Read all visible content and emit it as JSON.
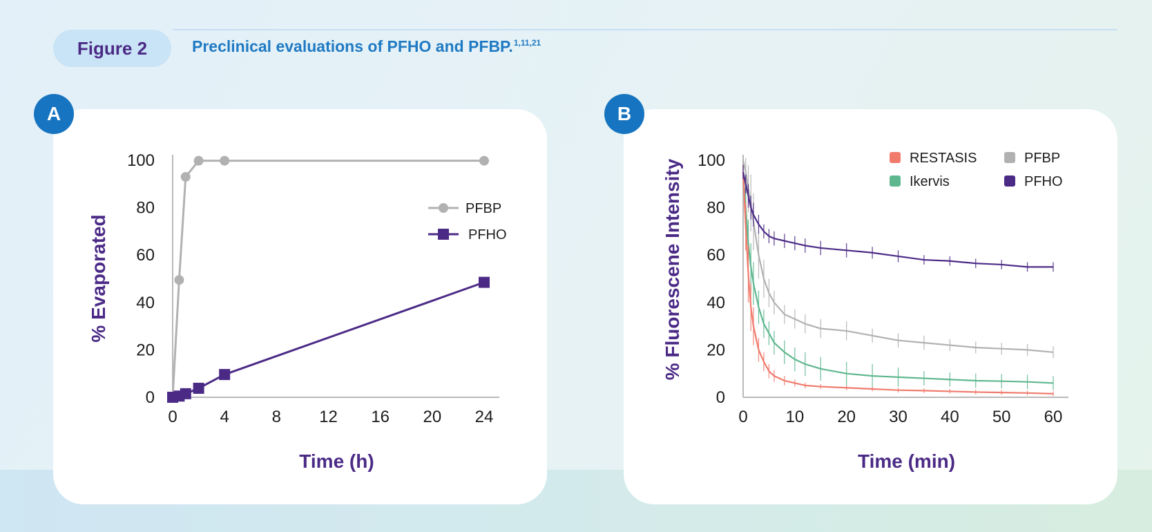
{
  "header": {
    "figure_label": "Figure 2",
    "title": "Preclinical evaluations of PFHO and PFBP.",
    "title_refs": "1,11,21"
  },
  "panels": {
    "a_label": "A",
    "b_label": "B"
  },
  "chart_data": [
    {
      "type": "line",
      "panel": "A",
      "xlabel": "Time (h)",
      "ylabel": "% Evaporated",
      "xlim": [
        0,
        24
      ],
      "ylim": [
        0,
        100
      ],
      "xticks": [
        0,
        4,
        8,
        12,
        16,
        20,
        24
      ],
      "yticks": [
        0,
        20,
        40,
        60,
        80,
        100
      ],
      "grid": false,
      "legend_position": "right",
      "series": [
        {
          "name": "PFBP",
          "marker": "circle",
          "color": "#b1b1b1",
          "x": [
            0,
            0.5,
            1,
            2,
            4,
            24
          ],
          "y": [
            0,
            49.5,
            93,
            99.8,
            99.8,
            99.8
          ]
        },
        {
          "name": "PFHO",
          "marker": "square",
          "color": "#4b2a86",
          "x": [
            0,
            0.5,
            1,
            2,
            4,
            24
          ],
          "y": [
            0,
            0.5,
            1.5,
            3.8,
            9.6,
            48.5
          ]
        }
      ]
    },
    {
      "type": "line",
      "panel": "B",
      "xlabel": "Time (min)",
      "ylabel": "% Fluorescene Intensity",
      "xlim": [
        0,
        60
      ],
      "ylim": [
        0,
        100
      ],
      "xticks": [
        0,
        10,
        20,
        30,
        40,
        50,
        60
      ],
      "yticks": [
        0,
        20,
        40,
        60,
        80,
        100
      ],
      "grid": false,
      "error_bars": true,
      "legend_position": "top-right",
      "x": [
        0,
        0.5,
        1,
        1.5,
        2,
        3,
        4,
        5,
        6,
        8,
        10,
        12,
        15,
        20,
        25,
        30,
        35,
        40,
        45,
        50,
        55,
        60
      ],
      "series": [
        {
          "name": "RESTASIS",
          "color": "#f07b6d",
          "y": [
            95,
            72,
            52,
            38,
            30,
            20,
            15,
            11,
            9,
            7,
            6,
            5,
            4.5,
            4,
            3.5,
            3,
            2.8,
            2.5,
            2.2,
            2,
            1.8,
            1.5
          ],
          "err": [
            3,
            10,
            12,
            10,
            8,
            5,
            4,
            3,
            2.5,
            2,
            1.5,
            1.2,
            1,
            1,
            1,
            1,
            1,
            1,
            1,
            1,
            1,
            1
          ]
        },
        {
          "name": "Ikervis",
          "color": "#5fb78f",
          "y": [
            95,
            80,
            65,
            55,
            48,
            38,
            31,
            27,
            23,
            19,
            16,
            14,
            12,
            10,
            9,
            8.5,
            8,
            7.5,
            7,
            6.8,
            6.5,
            6
          ],
          "err": [
            3,
            8,
            10,
            10,
            9,
            7,
            6,
            5,
            5,
            5,
            5,
            5,
            5,
            5,
            5,
            4,
            3,
            3,
            3,
            3,
            3,
            3
          ]
        },
        {
          "name": "PFBP",
          "color": "#b1b1b1",
          "y": [
            100,
            95,
            88,
            82,
            74,
            60,
            50,
            44,
            40,
            35,
            33,
            31,
            29,
            28,
            26,
            24,
            23,
            22,
            21,
            20.5,
            20,
            19
          ],
          "err": [
            2,
            6,
            10,
            12,
            12,
            10,
            8,
            6,
            5,
            4,
            4,
            4,
            4,
            4,
            3,
            3,
            3,
            2.5,
            2.5,
            2.5,
            2.5,
            2.5
          ]
        },
        {
          "name": "PFHO",
          "color": "#4b2a86",
          "y": [
            95,
            90,
            85,
            80,
            77,
            73,
            70,
            68,
            67,
            66,
            65,
            64,
            63,
            62,
            61,
            59.5,
            58,
            57.5,
            56.5,
            56,
            55,
            55
          ],
          "err": [
            3,
            4,
            5,
            5,
            5,
            4,
            3,
            3,
            3,
            3,
            3,
            3,
            3,
            3,
            2.5,
            2.5,
            2,
            2,
            2,
            2,
            2,
            2
          ]
        }
      ]
    }
  ]
}
